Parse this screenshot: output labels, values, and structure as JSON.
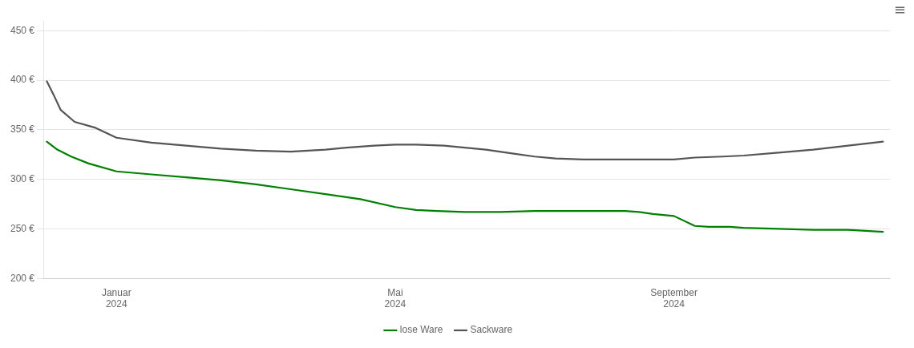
{
  "chart_data": {
    "type": "line",
    "series": [
      {
        "name": "lose Ware",
        "color": "#008000",
        "x": [
          0,
          0.15,
          0.35,
          0.6,
          1.0,
          1.5,
          2.0,
          2.5,
          3.0,
          3.5,
          4.0,
          4.5,
          5.0,
          5.3,
          5.6,
          6.0,
          6.5,
          7.0,
          7.5,
          8.0,
          8.3,
          8.5,
          8.7,
          9.0,
          9.3,
          9.5,
          9.8,
          10.0,
          10.5,
          11.0,
          11.5,
          12.0
        ],
        "values": [
          338,
          330,
          323,
          316,
          308,
          305,
          302,
          299,
          295,
          290,
          285,
          280,
          272,
          269,
          268,
          267,
          267,
          268,
          268,
          268,
          268,
          267,
          265,
          263,
          253,
          252,
          252,
          251,
          250,
          249,
          249,
          247
        ]
      },
      {
        "name": "Sackware",
        "color": "#555555",
        "x": [
          0,
          0.1,
          0.2,
          0.4,
          0.7,
          1.0,
          1.5,
          2.0,
          2.5,
          3.0,
          3.5,
          4.0,
          4.3,
          4.7,
          5.0,
          5.3,
          5.7,
          6.0,
          6.3,
          6.7,
          7.0,
          7.3,
          7.7,
          8.0,
          8.5,
          9.0,
          9.3,
          9.7,
          10.0,
          10.5,
          11.0,
          11.5,
          12.0
        ],
        "values": [
          399,
          385,
          370,
          358,
          352,
          342,
          337,
          334,
          331,
          329,
          328,
          330,
          332,
          334,
          335,
          335,
          334,
          332,
          330,
          326,
          323,
          321,
          320,
          320,
          320,
          320,
          322,
          323,
          324,
          327,
          330,
          334,
          338
        ]
      }
    ],
    "xlim": [
      -0.05,
      12.1
    ],
    "xticks": [
      {
        "value": 1.0,
        "label": "Januar\n2024"
      },
      {
        "value": 5.0,
        "label": "Mai\n2024"
      },
      {
        "value": 9.0,
        "label": "September\n2024"
      }
    ],
    "ylim": [
      200,
      460
    ],
    "yticks": [
      {
        "value": 200,
        "label": "200 €"
      },
      {
        "value": 250,
        "label": "250 €"
      },
      {
        "value": 300,
        "label": "300 €"
      },
      {
        "value": 350,
        "label": "350 €"
      },
      {
        "value": 400,
        "label": "400 €"
      },
      {
        "value": 450,
        "label": "450 €"
      }
    ],
    "grid": "y",
    "legend": "bottom",
    "annotations": [
      "≡"
    ]
  }
}
